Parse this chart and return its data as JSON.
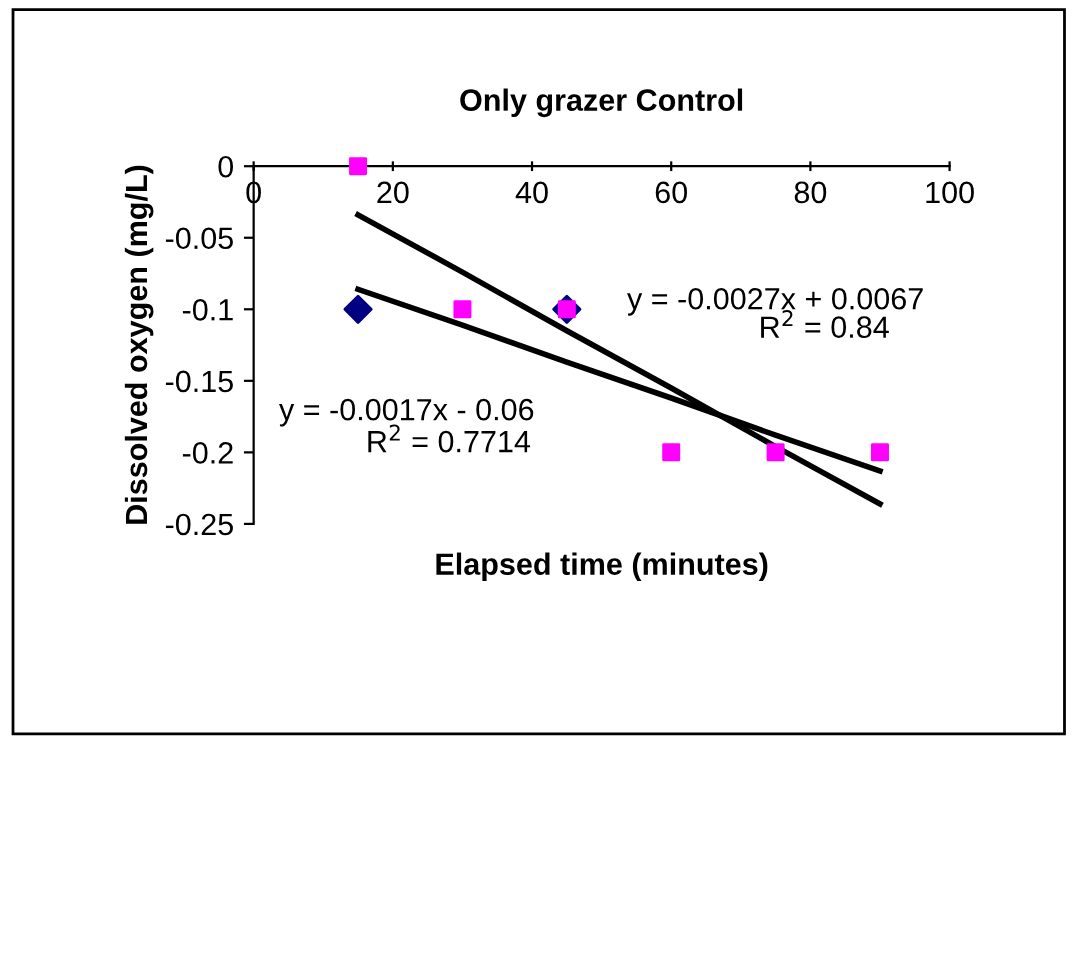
{
  "chart_data": {
    "type": "scatter",
    "title": "Only grazer Control",
    "xlabel": "Elapsed time (minutes)",
    "ylabel": "Dissolved oxygen (mg/L)",
    "x": [
      15,
      30,
      45,
      60,
      75,
      90
    ],
    "series": [
      {
        "color": "#000080",
        "marker": "diamond",
        "values": [
          -0.1,
          null,
          -0.1,
          null,
          null,
          null
        ]
      },
      {
        "color": "#ff00ff",
        "marker": "square",
        "values": [
          0,
          -0.1,
          -0.1,
          -0.2,
          -0.2,
          -0.2
        ]
      },
      {
        "type": "line",
        "color": "#000000",
        "marker": "none",
        "values": [
          -0.086,
          -0.111,
          -0.137,
          -0.162,
          -0.188,
          -0.213
        ]
      },
      {
        "type": "line",
        "color": "#000000",
        "marker": "none",
        "values": [
          -0.034,
          -0.074,
          -0.115,
          -0.155,
          -0.196,
          -0.236
        ]
      }
    ],
    "annotations": [
      "y = -0.0027x + 0.0067",
      "R$^{2}$ = 0.84",
      "y = -0.0017x - 0.06",
      "R$^{2}$ = 0.7714"
    ],
    "xlim": [
      0,
      100
    ],
    "xticks": [
      0,
      20,
      40,
      60,
      80,
      100
    ],
    "ylim": [
      -0.25,
      0
    ],
    "yticks": [
      -0.25,
      -0.2,
      -0.15,
      -0.1,
      -0.05,
      0
    ],
    "grid": false,
    "legend": false
  }
}
